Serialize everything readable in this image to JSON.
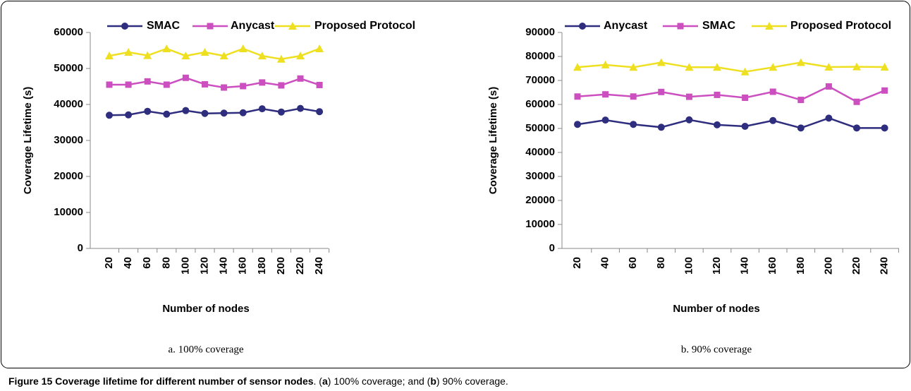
{
  "chart_data": [
    {
      "type": "line",
      "subtitle": "a. 100% coverage",
      "xlabel": "Number of nodes",
      "ylabel": "Coverage Lifetime (s)",
      "categories": [
        "20",
        "40",
        "60",
        "80",
        "100",
        "120",
        "140",
        "160",
        "180",
        "200",
        "220",
        "240"
      ],
      "ylim": [
        0,
        60000
      ],
      "yticks": [
        0,
        10000,
        20000,
        30000,
        40000,
        50000,
        60000
      ],
      "grid": false,
      "series": [
        {
          "name": "SMAC",
          "color": "#2e2d7e",
          "marker": "circle",
          "values": [
            37000,
            37100,
            38100,
            37300,
            38300,
            37500,
            37600,
            37700,
            38800,
            37900,
            38900,
            38000
          ]
        },
        {
          "name": "Anycast",
          "color": "#cc4fc0",
          "marker": "square",
          "values": [
            45500,
            45500,
            46400,
            45500,
            47400,
            45600,
            44700,
            45100,
            46100,
            45300,
            47200,
            45400
          ]
        },
        {
          "name": "Proposed Protocol",
          "color": "#eee021",
          "marker": "triangle",
          "values": [
            53500,
            54500,
            53600,
            55500,
            53500,
            54500,
            53500,
            55500,
            53500,
            52600,
            53500,
            55500
          ]
        }
      ]
    },
    {
      "type": "line",
      "subtitle": "b. 90% coverage",
      "xlabel": "Number of nodes",
      "ylabel": "Coverage Lifetime (s)",
      "categories": [
        "20",
        "40",
        "60",
        "80",
        "100",
        "120",
        "140",
        "160",
        "180",
        "200",
        "220",
        "240"
      ],
      "ylim": [
        0,
        90000
      ],
      "yticks": [
        0,
        10000,
        20000,
        30000,
        40000,
        50000,
        60000,
        70000,
        80000,
        90000
      ],
      "grid": false,
      "series": [
        {
          "name": "Anycast",
          "color": "#2e2d7e",
          "marker": "circle",
          "values": [
            51700,
            53500,
            51700,
            50500,
            53600,
            51500,
            50900,
            53300,
            50200,
            54300,
            50200,
            50200
          ]
        },
        {
          "name": "SMAC",
          "color": "#cc4fc0",
          "marker": "square",
          "values": [
            63300,
            64200,
            63300,
            65200,
            63200,
            64000,
            62800,
            65300,
            61900,
            67500,
            61100,
            65800
          ]
        },
        {
          "name": "Proposed Protocol",
          "color": "#eee021",
          "marker": "triangle",
          "values": [
            75500,
            76500,
            75500,
            77500,
            75500,
            75500,
            73600,
            75500,
            77500,
            75600,
            75700,
            75600
          ]
        }
      ]
    }
  ],
  "caption": [
    {
      "text": "Figure 15 Coverage lifetime for different number of sensor nodes",
      "bold": true
    },
    {
      "text": ". (",
      "bold": false
    },
    {
      "text": "a",
      "bold": true
    },
    {
      "text": ") 100% coverage; and (",
      "bold": false
    },
    {
      "text": "b",
      "bold": true
    },
    {
      "text": ") 90% coverage.",
      "bold": false
    }
  ]
}
